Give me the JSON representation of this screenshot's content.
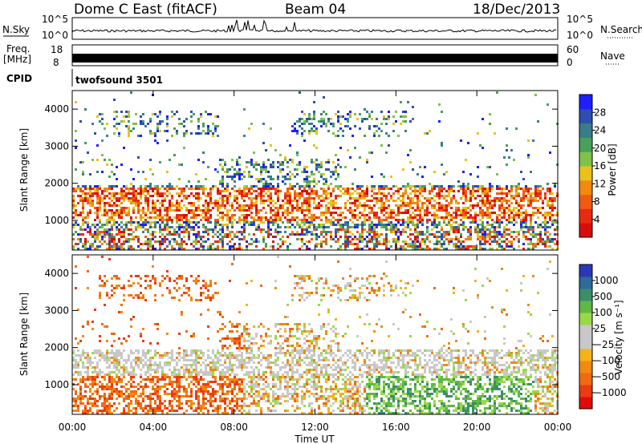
{
  "header": {
    "station": "Dome C East (fitACF)",
    "beam": "Beam 04",
    "date": "18/Dec/2013"
  },
  "strips": {
    "nsky_label": "N.Sky",
    "nsky_ticks": [
      "10^5",
      "10^0"
    ],
    "nsearch_label": "N.Search",
    "freq_label_1": "Freq.",
    "freq_label_2": "[MHz]",
    "freq_ticks": [
      "18",
      "8"
    ],
    "nave_label": "Nave",
    "nave_ticks": [
      "60",
      "0"
    ],
    "cpid_label": "CPID",
    "cpid_value": "twofsound 3501"
  },
  "chart_data": [
    {
      "type": "heatmap",
      "title": "",
      "xlabel": "",
      "ylabel": "Slant Range [km]",
      "ylim": [
        200,
        4500
      ],
      "yticks": [
        "1000",
        "2000",
        "3000",
        "4000"
      ],
      "xticks": [
        "00:00",
        "04:00",
        "08:00",
        "12:00",
        "16:00",
        "20:00",
        "00:00"
      ],
      "colorbar": {
        "label": "Power [dB]",
        "ticks": [
          "4",
          "8",
          "12",
          "16",
          "20",
          "24",
          "28"
        ],
        "colors": [
          "#1e1eff",
          "#2d4fb0",
          "#3a7d8a",
          "#49a05a",
          "#7ec24a",
          "#e8c21a",
          "#f08a10",
          "#f25a14",
          "#e82a12",
          "#d80c0c"
        ]
      }
    },
    {
      "type": "heatmap",
      "title": "",
      "xlabel": "Time UT",
      "ylabel": "Slant Range [km]",
      "ylim": [
        200,
        4500
      ],
      "yticks": [
        "1000",
        "2000",
        "3000",
        "4000"
      ],
      "xticks": [
        "00:00",
        "04:00",
        "08:00",
        "12:00",
        "16:00",
        "20:00",
        "00:00"
      ],
      "colorbar": {
        "label": "Velocity [m s⁻¹]",
        "ticks": [
          "1000",
          "500",
          "100",
          "25",
          "−25",
          "−100",
          "−500",
          "−1000"
        ],
        "colors": [
          "#2a38b8",
          "#2f6a9a",
          "#3c8e6a",
          "#5fb845",
          "#9ad84a",
          "#c8c8c8",
          "#c8c8c8",
          "#f3b31b",
          "#f08a10",
          "#f06a12",
          "#ec3a12",
          "#e00c0c"
        ]
      }
    }
  ]
}
